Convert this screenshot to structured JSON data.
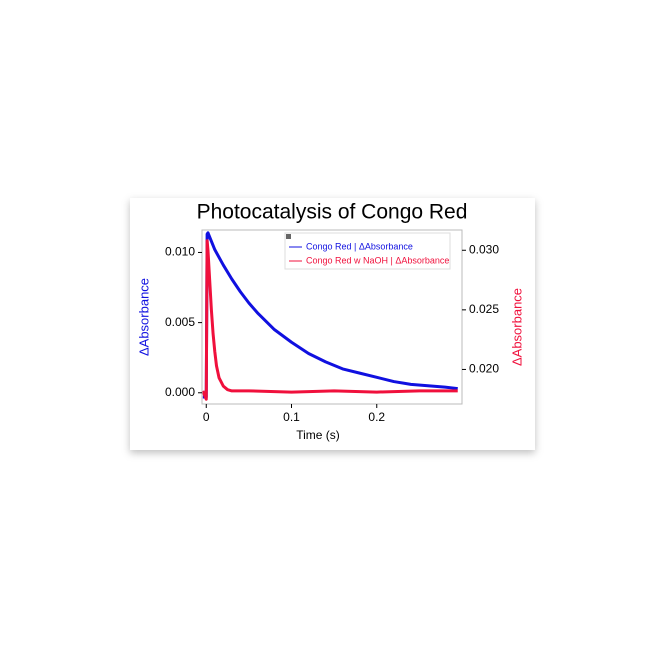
{
  "chart_data": {
    "type": "line",
    "title": "Photocatalysis of Congo Red",
    "x_label": "Time (s)",
    "y_label": "ΔAbsorbance",
    "y2_label": "ΔAbsorbance",
    "xlim": [
      -0.005,
      0.3
    ],
    "xticks": [
      0,
      0.1,
      0.2
    ],
    "ylim": [
      -0.0008,
      0.0116
    ],
    "yticks": [
      {
        "value": 0,
        "label": "0.000"
      },
      0.005,
      {
        "value": 0.01,
        "label": "0.010"
      }
    ],
    "y2lim": [
      0.0171,
      0.0317
    ],
    "y2ticks": [
      {
        "value": 0.02,
        "label": "0.020"
      },
      0.025,
      {
        "value": 0.03,
        "label": "0.030"
      }
    ],
    "series": [
      {
        "name": "Congo Red | ΔAbsorbance",
        "color": "#1010e0",
        "x": [
          -0.004,
          0,
          0.001,
          0.002,
          0.01,
          0.02,
          0.03,
          0.04,
          0.05,
          0.06,
          0.08,
          0.1,
          0.12,
          0.14,
          0.16,
          0.18,
          0.2,
          0.22,
          0.24,
          0.26,
          0.28,
          0.295
        ],
        "values": [
          -0.0003,
          -0.0003,
          0.0113,
          0.0114,
          0.0102,
          0.0091,
          0.0081,
          0.0072,
          0.0064,
          0.0057,
          0.0045,
          0.0036,
          0.0028,
          0.0022,
          0.0017,
          0.0014,
          0.0011,
          0.0008,
          0.0006,
          0.0005,
          0.0004,
          0.0003
        ]
      },
      {
        "name": "Congo Red w NaOH | ΔAbsorbance",
        "color": "#f0103c",
        "axis": "y2",
        "x": [
          -0.004,
          0,
          0.001,
          0.002,
          0.004,
          0.006,
          0.008,
          0.01,
          0.012,
          0.015,
          0.02,
          0.025,
          0.03,
          0.05,
          0.1,
          0.15,
          0.2,
          0.25,
          0.295
        ],
        "values": [
          0.0182,
          0.0175,
          0.0308,
          0.03,
          0.0275,
          0.025,
          0.023,
          0.0215,
          0.0203,
          0.0193,
          0.0186,
          0.0183,
          0.0182,
          0.0182,
          0.0181,
          0.0182,
          0.0181,
          0.0182,
          0.0182
        ]
      }
    ]
  }
}
